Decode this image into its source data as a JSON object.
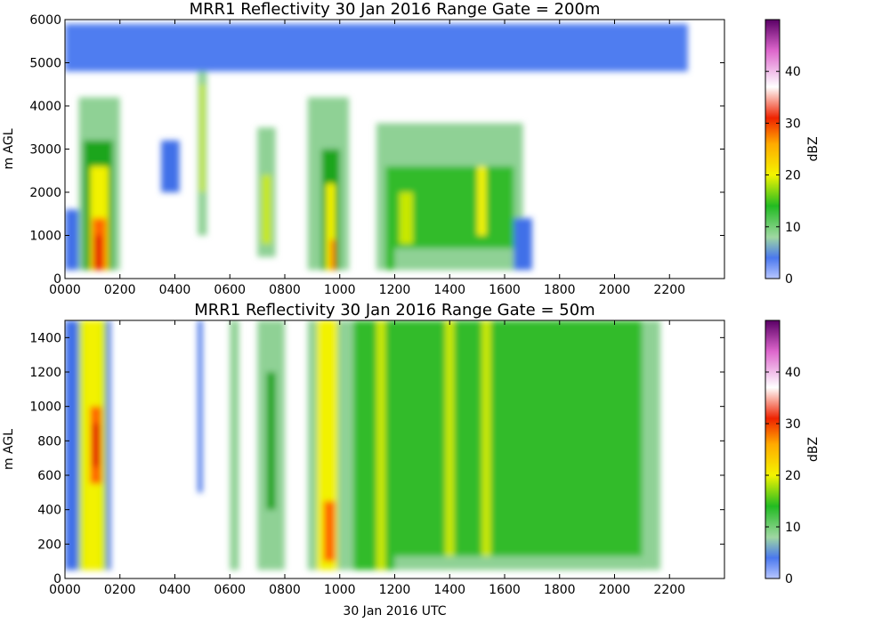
{
  "chart_data": [
    {
      "type": "heatmap",
      "title": "MRR1 Reflectivity 30 Jan 2016 Range Gate = 200m",
      "xlabel": "",
      "ylabel": "m AGL",
      "xlim": [
        0,
        1440
      ],
      "ylim": [
        0,
        6000
      ],
      "x_ticks": [
        "0000",
        "0200",
        "0400",
        "0600",
        "0800",
        "1000",
        "1200",
        "1400",
        "1600",
        "1800",
        "2000",
        "2200"
      ],
      "y_ticks": [
        "0",
        "1000",
        "2000",
        "3000",
        "4000",
        "5000",
        "6000"
      ],
      "colorbar": {
        "label": "dBZ",
        "range": [
          0,
          50
        ],
        "ticks": [
          "0",
          "10",
          "20",
          "30",
          "40"
        ]
      },
      "cells": [
        {
          "t0": 0,
          "t1": 90,
          "h0": 200,
          "h1": 1600,
          "dbz": 5
        },
        {
          "t0": 30,
          "t1": 120,
          "h0": 200,
          "h1": 4200,
          "dbz": 8
        },
        {
          "t0": 40,
          "t1": 105,
          "h0": 200,
          "h1": 3200,
          "dbz": 15
        },
        {
          "t0": 55,
          "t1": 95,
          "h0": 200,
          "h1": 2600,
          "dbz": 22
        },
        {
          "t0": 60,
          "t1": 90,
          "h0": 200,
          "h1": 1400,
          "dbz": 28
        },
        {
          "t0": 65,
          "t1": 80,
          "h0": 200,
          "h1": 1000,
          "dbz": 32
        },
        {
          "t0": 210,
          "t1": 250,
          "h0": 2000,
          "h1": 3200,
          "dbz": 6
        },
        {
          "t0": 290,
          "t1": 310,
          "h0": 1000,
          "h1": 5000,
          "dbz": 8
        },
        {
          "t0": 295,
          "t1": 305,
          "h0": 2000,
          "h1": 4500,
          "dbz": 18
        },
        {
          "t0": 420,
          "t1": 460,
          "h0": 500,
          "h1": 3500,
          "dbz": 8
        },
        {
          "t0": 430,
          "t1": 450,
          "h0": 800,
          "h1": 2400,
          "dbz": 18
        },
        {
          "t0": 530,
          "t1": 620,
          "h0": 200,
          "h1": 4200,
          "dbz": 8
        },
        {
          "t0": 560,
          "t1": 600,
          "h0": 200,
          "h1": 3000,
          "dbz": 15
        },
        {
          "t0": 570,
          "t1": 590,
          "h0": 200,
          "h1": 2200,
          "dbz": 22
        },
        {
          "t0": 580,
          "t1": 590,
          "h0": 200,
          "h1": 900,
          "dbz": 30
        },
        {
          "t0": 680,
          "t1": 1000,
          "h0": 200,
          "h1": 3600,
          "dbz": 8
        },
        {
          "t0": 700,
          "t1": 980,
          "h0": 200,
          "h1": 2600,
          "dbz": 12
        },
        {
          "t0": 720,
          "t1": 980,
          "h0": 200,
          "h1": 700,
          "dbz": 7
        },
        {
          "t0": 730,
          "t1": 760,
          "h0": 800,
          "h1": 2000,
          "dbz": 19
        },
        {
          "t0": 900,
          "t1": 920,
          "h0": 1000,
          "h1": 2600,
          "dbz": 20
        },
        {
          "t0": 980,
          "t1": 1020,
          "h0": 200,
          "h1": 1400,
          "dbz": 6
        },
        {
          "t0": 0,
          "t1": 1360,
          "h0": 4800,
          "h1": 5900,
          "dbz": 3
        }
      ]
    },
    {
      "type": "heatmap",
      "title": "MRR1 Reflectivity 30 Jan 2016 Range Gate = 50m",
      "xlabel": "30 Jan 2016 UTC",
      "ylabel": "m AGL",
      "xlim": [
        0,
        1440
      ],
      "ylim": [
        0,
        1500
      ],
      "x_ticks": [
        "0000",
        "0200",
        "0400",
        "0600",
        "0800",
        "1000",
        "1200",
        "1400",
        "1600",
        "1800",
        "2000",
        "2200"
      ],
      "y_ticks": [
        "0",
        "200",
        "400",
        "600",
        "800",
        "1000",
        "1200",
        "1400"
      ],
      "colorbar": {
        "label": "dBZ",
        "range": [
          0,
          50
        ],
        "ticks": [
          "0",
          "10",
          "20",
          "30",
          "40"
        ]
      },
      "cells": [
        {
          "t0": 0,
          "t1": 100,
          "h0": 50,
          "h1": 1500,
          "dbz": 6
        },
        {
          "t0": 30,
          "t1": 90,
          "h0": 50,
          "h1": 1500,
          "dbz": 17
        },
        {
          "t0": 40,
          "t1": 80,
          "h0": 50,
          "h1": 1500,
          "dbz": 22
        },
        {
          "t0": 55,
          "t1": 80,
          "h0": 550,
          "h1": 1000,
          "dbz": 28
        },
        {
          "t0": 60,
          "t1": 75,
          "h0": 650,
          "h1": 900,
          "dbz": 32
        },
        {
          "t0": 290,
          "t1": 300,
          "h0": 500,
          "h1": 1500,
          "dbz": 6
        },
        {
          "t0": 360,
          "t1": 380,
          "h0": 50,
          "h1": 1500,
          "dbz": 8
        },
        {
          "t0": 420,
          "t1": 480,
          "h0": 50,
          "h1": 1500,
          "dbz": 8
        },
        {
          "t0": 440,
          "t1": 460,
          "h0": 400,
          "h1": 1200,
          "dbz": 15
        },
        {
          "t0": 530,
          "t1": 610,
          "h0": 50,
          "h1": 1500,
          "dbz": 8
        },
        {
          "t0": 550,
          "t1": 595,
          "h0": 50,
          "h1": 1500,
          "dbz": 20
        },
        {
          "t0": 565,
          "t1": 590,
          "h0": 100,
          "h1": 450,
          "dbz": 30
        },
        {
          "t0": 610,
          "t1": 1300,
          "h0": 50,
          "h1": 1500,
          "dbz": 8
        },
        {
          "t0": 630,
          "t1": 1260,
          "h0": 50,
          "h1": 1500,
          "dbz": 13
        },
        {
          "t0": 680,
          "t1": 700,
          "h0": 50,
          "h1": 1500,
          "dbz": 19
        },
        {
          "t0": 830,
          "t1": 850,
          "h0": 50,
          "h1": 1500,
          "dbz": 19
        },
        {
          "t0": 910,
          "t1": 930,
          "h0": 50,
          "h1": 1500,
          "dbz": 18
        },
        {
          "t0": 720,
          "t1": 1260,
          "h0": 50,
          "h1": 130,
          "dbz": 7
        }
      ]
    }
  ]
}
